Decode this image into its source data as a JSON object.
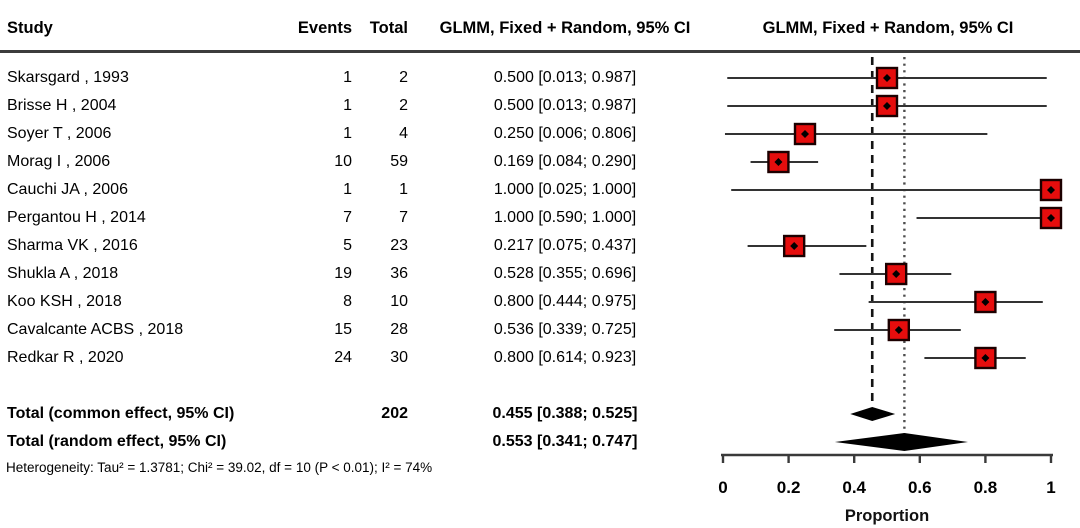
{
  "header": {
    "study": "Study",
    "events": "Events",
    "total": "Total",
    "ci": "GLMM, Fixed + Random, 95% CI",
    "plot": "GLMM, Fixed + Random, 95% CI"
  },
  "chart_data": {
    "type": "forest",
    "xlabel": "Proportion",
    "xlim": [
      0,
      1
    ],
    "x_ticks": [
      0,
      0.2,
      0.4,
      0.6,
      0.8,
      1
    ],
    "x_tick_labels": [
      "0",
      "0.2",
      "0.4",
      "0.6",
      "0.8",
      "1"
    ],
    "marker_fill": "#e60d0d",
    "marker_stroke": "#1c0000",
    "ci_line_color": "#333333",
    "summary_color": "#000000",
    "studies": [
      {
        "name": "Skarsgard , 1993",
        "events": 1,
        "total": 2,
        "estimate": 0.5,
        "ci_low": 0.013,
        "ci_high": 0.987,
        "ci_label": "0.500 [0.013; 0.987]"
      },
      {
        "name": "Brisse H , 2004",
        "events": 1,
        "total": 2,
        "estimate": 0.5,
        "ci_low": 0.013,
        "ci_high": 0.987,
        "ci_label": "0.500 [0.013; 0.987]"
      },
      {
        "name": "Soyer T , 2006",
        "events": 1,
        "total": 4,
        "estimate": 0.25,
        "ci_low": 0.006,
        "ci_high": 0.806,
        "ci_label": "0.250 [0.006; 0.806]"
      },
      {
        "name": "Morag I , 2006",
        "events": 10,
        "total": 59,
        "estimate": 0.169,
        "ci_low": 0.084,
        "ci_high": 0.29,
        "ci_label": "0.169 [0.084; 0.290]"
      },
      {
        "name": "Cauchi JA , 2006",
        "events": 1,
        "total": 1,
        "estimate": 1.0,
        "ci_low": 0.025,
        "ci_high": 1.0,
        "ci_label": "1.000 [0.025; 1.000]"
      },
      {
        "name": "Pergantou H , 2014",
        "events": 7,
        "total": 7,
        "estimate": 1.0,
        "ci_low": 0.59,
        "ci_high": 1.0,
        "ci_label": "1.000 [0.590; 1.000]"
      },
      {
        "name": "Sharma VK , 2016",
        "events": 5,
        "total": 23,
        "estimate": 0.217,
        "ci_low": 0.075,
        "ci_high": 0.437,
        "ci_label": "0.217 [0.075; 0.437]"
      },
      {
        "name": "Shukla A , 2018",
        "events": 19,
        "total": 36,
        "estimate": 0.528,
        "ci_low": 0.355,
        "ci_high": 0.696,
        "ci_label": "0.528 [0.355; 0.696]"
      },
      {
        "name": "Koo KSH , 2018",
        "events": 8,
        "total": 10,
        "estimate": 0.8,
        "ci_low": 0.444,
        "ci_high": 0.975,
        "ci_label": "0.800 [0.444; 0.975]"
      },
      {
        "name": "Cavalcante ACBS , 2018",
        "events": 15,
        "total": 28,
        "estimate": 0.536,
        "ci_low": 0.339,
        "ci_high": 0.725,
        "ci_label": "0.536 [0.339; 0.725]"
      },
      {
        "name": "Redkar R , 2020",
        "events": 24,
        "total": 30,
        "estimate": 0.8,
        "ci_low": 0.614,
        "ci_high": 0.923,
        "ci_label": "0.800 [0.614; 0.923]"
      }
    ],
    "totals": [
      {
        "label": "Total (common effect, 95% CI)",
        "total": "202",
        "estimate": 0.455,
        "ci_low": 0.388,
        "ci_high": 0.525,
        "ci_label": "0.455 [0.388; 0.525]",
        "reference_line_style": "dashed"
      },
      {
        "label": "Total (random effect, 95% CI)",
        "total": "",
        "estimate": 0.553,
        "ci_low": 0.341,
        "ci_high": 0.747,
        "ci_label": "0.553 [0.341; 0.747]",
        "reference_line_style": "dotted"
      }
    ],
    "heterogeneity": "Heterogeneity: Tau² = 1.3781; Chi² = 39.02, df = 10 (P < 0.01); I² = 74%"
  }
}
